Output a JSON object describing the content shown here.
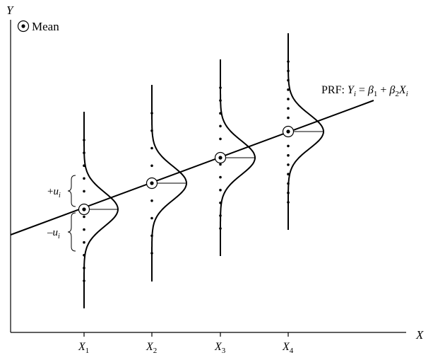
{
  "axes": {
    "y_label": "Y",
    "x_label": "X"
  },
  "legend": {
    "label": "Mean"
  },
  "prf": {
    "prefix": "PRF: ",
    "Y": "Y",
    "i": "i",
    "eq": " = ",
    "beta": "β",
    "one": "1",
    "plus": " + ",
    "two": "2",
    "X": "X"
  },
  "ticks": [
    {
      "var": "X",
      "sub": "1"
    },
    {
      "var": "X",
      "sub": "2"
    },
    {
      "var": "X",
      "sub": "3"
    },
    {
      "var": "X",
      "sub": "4"
    }
  ],
  "error_labels": {
    "plus_sign": "+",
    "minus_sign": "–",
    "u": "u",
    "i": "i"
  },
  "colors": {
    "ink": "#000000",
    "background": "#ffffff"
  }
}
